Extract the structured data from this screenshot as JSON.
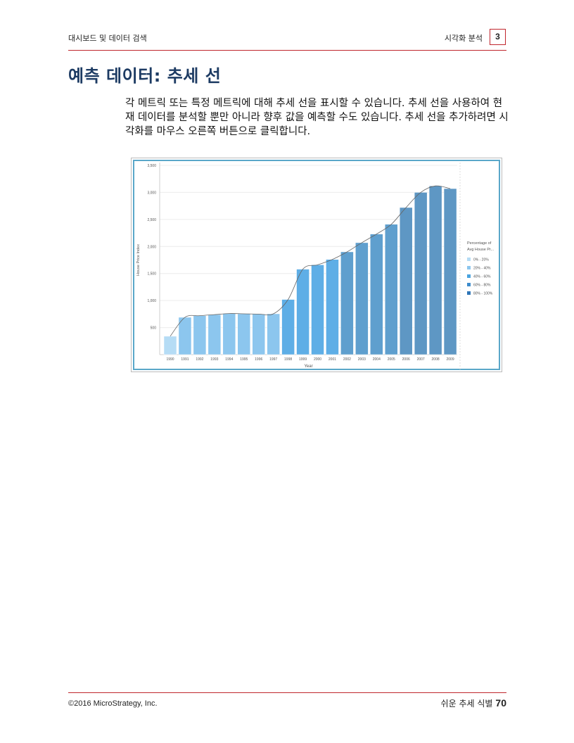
{
  "header": {
    "left": "대시보드 및 데이터 검색",
    "right": "시각화 분석",
    "chapter": "3"
  },
  "title": "예측 데이터: 추세 선",
  "body": "각 메트릭 또는 특정 메트릭에 대해 추세 선을 표시할 수 있습니다. 추세 선을 사용하여 현재 데이터를 분석할 뿐만 아니라 향후 값을 예측할 수도 있습니다. 추세 선을 추가하려면 시각화를 마우스 오른쪽 버튼으로 클릭합니다.",
  "chart_data": {
    "type": "bar",
    "categories": [
      "1990",
      "1991",
      "1992",
      "1993",
      "1994",
      "1995",
      "1996",
      "1997",
      "1998",
      "1999",
      "2000",
      "2001",
      "2002",
      "2003",
      "2004",
      "2005",
      "2006",
      "2007",
      "2008",
      "2009"
    ],
    "values": [
      340,
      690,
      720,
      740,
      760,
      755,
      750,
      755,
      1020,
      1580,
      1660,
      1760,
      1900,
      2070,
      2230,
      2410,
      2720,
      3000,
      3120,
      3070
    ],
    "color_bands": [
      0,
      1,
      1,
      1,
      1,
      1,
      1,
      1,
      2,
      2,
      2,
      2,
      3,
      3,
      3,
      3,
      4,
      4,
      4,
      4
    ],
    "band_colors": [
      "#b5dcf5",
      "#8cc6ee",
      "#5eaee6",
      "#5f9fce",
      "#5e97c4"
    ],
    "xlabel": "Year",
    "ylabel": "House Price Index",
    "ylim": [
      0,
      3500
    ],
    "yticks": [
      "3,500",
      "3,000",
      "2,500",
      "2,000",
      "1,500",
      "1,000",
      "500"
    ],
    "ytick_values": [
      3500,
      3000,
      2500,
      2000,
      1500,
      1000,
      500
    ],
    "trendline": "smooth",
    "legend": {
      "title": [
        "Percentage of",
        "Avg House Pr..."
      ],
      "items": [
        "0% - 20%",
        "20% - 40%",
        "40% - 60%",
        "60% - 80%",
        "80% - 100%"
      ],
      "colors": [
        "#b5dcf5",
        "#8cc6ee",
        "#4aa3df",
        "#3d8ccc",
        "#2f76b8"
      ],
      "position": "right"
    }
  },
  "footer": {
    "left": "©2016 MicroStrategy, Inc.",
    "right": "쉬운 추세 식별",
    "page": "70"
  }
}
